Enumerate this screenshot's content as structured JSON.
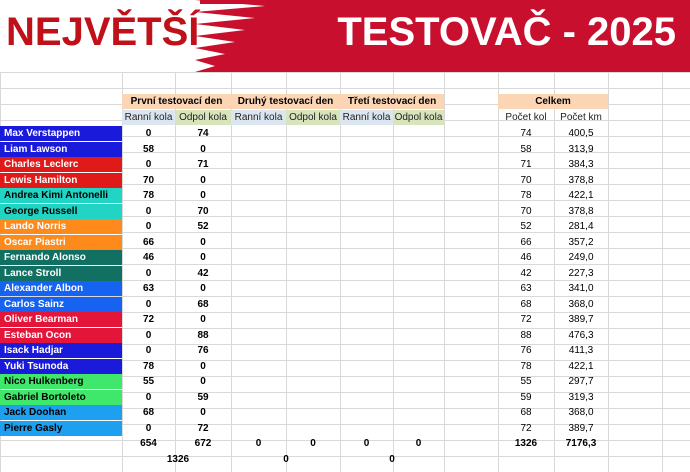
{
  "banner": {
    "left_text": "NEJVĚTŠÍ",
    "right_text": "TESTOVAČ - 2025"
  },
  "colors": {
    "banner_red": "#c8102e",
    "header_orange": "#fcd5b4",
    "subheader_green": "#d8e4bc",
    "subheader_blue": "#dce6f1"
  },
  "headers": {
    "day1": "První testovací den",
    "day2": "Druhý testovací den",
    "day3": "Třetí testovací den",
    "total": "Celkem",
    "morning": "Ranní kola",
    "afternoon": "Odpol kola",
    "laps": "Počet kol",
    "km": "Počet km"
  },
  "drivers": [
    {
      "name": "Max Verstappen",
      "am": "0",
      "pm": "74",
      "laps": "74",
      "km": "400,5",
      "color": "#1a1adb",
      "text": "#ffffff"
    },
    {
      "name": "Liam Lawson",
      "am": "58",
      "pm": "0",
      "laps": "58",
      "km": "313,9",
      "color": "#1a1adb",
      "text": "#ffffff"
    },
    {
      "name": "Charles Leclerc",
      "am": "0",
      "pm": "71",
      "laps": "71",
      "km": "384,3",
      "color": "#e01919",
      "text": "#ffffff"
    },
    {
      "name": "Lewis Hamilton",
      "am": "70",
      "pm": "0",
      "laps": "70",
      "km": "378,8",
      "color": "#e01919",
      "text": "#ffffff"
    },
    {
      "name": "Andrea Kimi Antonelli",
      "am": "78",
      "pm": "0",
      "laps": "78",
      "km": "422,1",
      "color": "#21d4c4",
      "text": "#000000"
    },
    {
      "name": "George Russell",
      "am": "0",
      "pm": "70",
      "laps": "70",
      "km": "378,8",
      "color": "#21d4c4",
      "text": "#000000"
    },
    {
      "name": "Lando Norris",
      "am": "0",
      "pm": "52",
      "laps": "52",
      "km": "281,4",
      "color": "#ff8a1c",
      "text": "#ffffff"
    },
    {
      "name": "Oscar Piastri",
      "am": "66",
      "pm": "0",
      "laps": "66",
      "km": "357,2",
      "color": "#ff8a1c",
      "text": "#ffffff"
    },
    {
      "name": "Fernando Alonso",
      "am": "46",
      "pm": "0",
      "laps": "46",
      "km": "249,0",
      "color": "#127062",
      "text": "#ffffff"
    },
    {
      "name": "Lance Stroll",
      "am": "0",
      "pm": "42",
      "laps": "42",
      "km": "227,3",
      "color": "#127062",
      "text": "#ffffff"
    },
    {
      "name": "Alexander Albon",
      "am": "63",
      "pm": "0",
      "laps": "63",
      "km": "341,0",
      "color": "#1563f0",
      "text": "#ffffff"
    },
    {
      "name": "Carlos Sainz",
      "am": "0",
      "pm": "68",
      "laps": "68",
      "km": "368,0",
      "color": "#1563f0",
      "text": "#ffffff"
    },
    {
      "name": "Oliver Bearman",
      "am": "72",
      "pm": "0",
      "laps": "72",
      "km": "389,7",
      "color": "#e3163a",
      "text": "#ffffff"
    },
    {
      "name": "Esteban Ocon",
      "am": "0",
      "pm": "88",
      "laps": "88",
      "km": "476,3",
      "color": "#e3163a",
      "text": "#ffffff"
    },
    {
      "name": "Isack Hadjar",
      "am": "0",
      "pm": "76",
      "laps": "76",
      "km": "411,3",
      "color": "#1a1adb",
      "text": "#ffffff"
    },
    {
      "name": "Yuki Tsunoda",
      "am": "78",
      "pm": "0",
      "laps": "78",
      "km": "422,1",
      "color": "#1a1adb",
      "text": "#ffffff"
    },
    {
      "name": "Nico Hulkenberg",
      "am": "55",
      "pm": "0",
      "laps": "55",
      "km": "297,7",
      "color": "#3fe86a",
      "text": "#000000"
    },
    {
      "name": "Gabriel Bortoleto",
      "am": "0",
      "pm": "59",
      "laps": "59",
      "km": "319,3",
      "color": "#3fe86a",
      "text": "#000000"
    },
    {
      "name": "Jack Doohan",
      "am": "68",
      "pm": "0",
      "laps": "68",
      "km": "368,0",
      "color": "#1ea0f0",
      "text": "#000000"
    },
    {
      "name": "Pierre Gasly",
      "am": "0",
      "pm": "72",
      "laps": "72",
      "km": "389,7",
      "color": "#1ea0f0",
      "text": "#000000"
    }
  ],
  "totals": {
    "day1_am": "654",
    "day1_pm": "672",
    "day2_am": "0",
    "day2_pm": "0",
    "day3_am": "0",
    "day3_pm": "0",
    "laps": "1326",
    "km": "7176,3",
    "day1_sum": "1326",
    "day2_sum": "0",
    "day3_sum": "0"
  }
}
